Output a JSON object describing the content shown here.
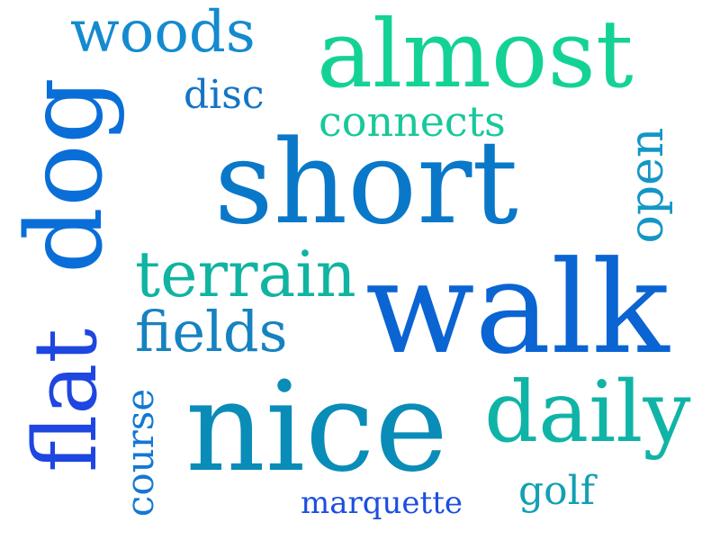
{
  "words": [
    {
      "key": "walk",
      "text": "walk",
      "color": "#0a64d2"
    },
    {
      "key": "short",
      "text": "short",
      "color": "#0a78c8"
    },
    {
      "key": "nice",
      "text": "nice",
      "color": "#0a8cb8"
    },
    {
      "key": "dog",
      "text": "dog",
      "color": "#0a6ed8"
    },
    {
      "key": "flat",
      "text": "flat",
      "color": "#1e46e0"
    },
    {
      "key": "almost",
      "text": "almost",
      "color": "#14d296"
    },
    {
      "key": "daily",
      "text": "daily",
      "color": "#10b4a6"
    },
    {
      "key": "terrain",
      "text": "terrain",
      "color": "#10b4a0"
    },
    {
      "key": "fields",
      "text": "fields",
      "color": "#1682c0"
    },
    {
      "key": "woods",
      "text": "woods",
      "color": "#148ad0"
    },
    {
      "key": "connects",
      "text": "connects",
      "color": "#18c89a"
    },
    {
      "key": "disc",
      "text": "disc",
      "color": "#1474c6"
    },
    {
      "key": "open",
      "text": "open",
      "color": "#1496c6"
    },
    {
      "key": "course",
      "text": "course",
      "color": "#1478d2"
    },
    {
      "key": "marquette",
      "text": "marquette",
      "color": "#1c4ee0"
    },
    {
      "key": "golf",
      "text": "golf",
      "color": "#12a0b4"
    }
  ]
}
